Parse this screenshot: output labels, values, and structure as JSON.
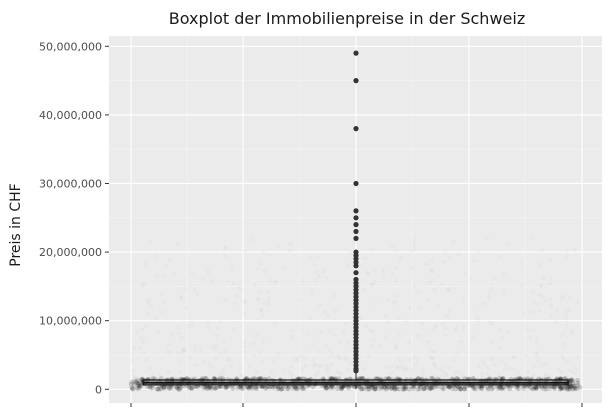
{
  "chart_data": {
    "type": "box",
    "title": "Boxplot der Immobilienpreise in der Schweiz",
    "xlabel": "",
    "ylabel": "Preis in CHF",
    "ylim": [
      -2000000,
      51500000
    ],
    "yticks": [
      0,
      10000000,
      20000000,
      30000000,
      40000000,
      50000000
    ],
    "ytick_labels": [
      "0",
      "10,000,000",
      "20,000,000",
      "30,000,000",
      "40,000,000",
      "50,000,000"
    ],
    "grid": true,
    "box": {
      "median": 950000,
      "q1": 650000,
      "q3": 1350000,
      "whisker_low": 0,
      "whisker_high": 2400000
    },
    "outliers": [
      49000000,
      45000000,
      38000000,
      30000000,
      26000000,
      25000000,
      24000000,
      23000000,
      22000000,
      20000000,
      19500000,
      19000000,
      18500000,
      18000000,
      17000000,
      16000000,
      15500000,
      15000000,
      14500000,
      14000000,
      13500000,
      13000000,
      12500000,
      12000000,
      11500000,
      11000000,
      10500000,
      10000000,
      9500000,
      9000000,
      8500000,
      8000000,
      7500000,
      7000000,
      6500000,
      6000000,
      5500000,
      5000000,
      4500000,
      4000000,
      3500000,
      3000000,
      2700000
    ],
    "colors": {
      "panel": "#ebebeb",
      "grid_major": "#ffffff",
      "grid_minor": "#f5f5f5",
      "points": "#333333",
      "tick_text": "#4d4d4d"
    }
  }
}
